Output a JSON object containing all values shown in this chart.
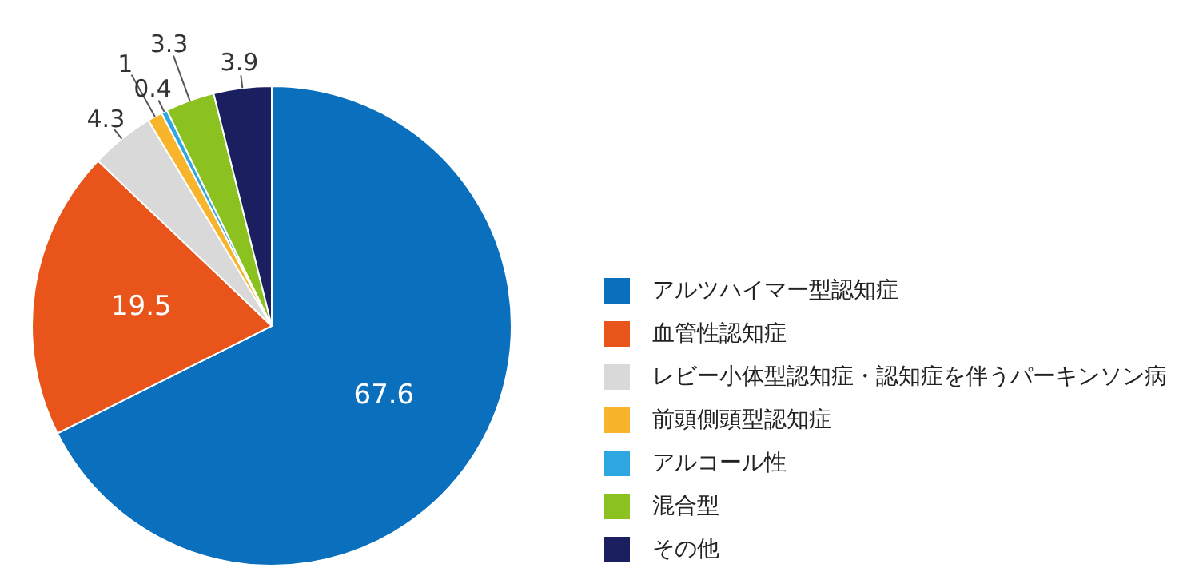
{
  "chart_data": {
    "type": "pie",
    "categories": [
      "アルツハイマー型認知症",
      "血管性認知症",
      "レビー小体型認知症・認知症を伴うパーキンソン病",
      "前頭側頭型認知症",
      "アルコール性",
      "混合型",
      "その他"
    ],
    "values": [
      67.6,
      19.5,
      4.3,
      1,
      0.4,
      3.3,
      3.9
    ],
    "colors": [
      "#0a70bd",
      "#e8541a",
      "#d9d9d9",
      "#f8b52b",
      "#2ea7e0",
      "#8cc220",
      "#1c1f5f"
    ],
    "data_labels": true,
    "legend": "right"
  }
}
